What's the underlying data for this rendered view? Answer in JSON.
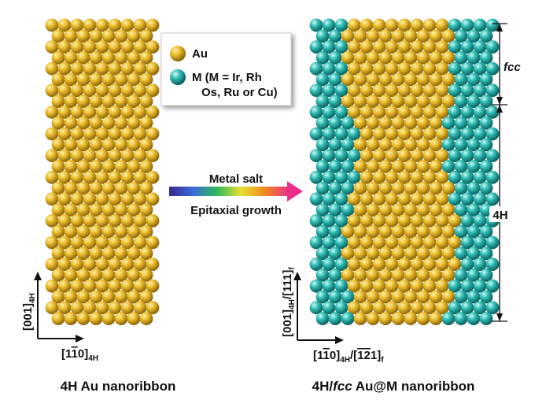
{
  "legend": {
    "items": [
      {
        "label_lines": [
          "Au"
        ]
      },
      {
        "label_lines": [
          "M (M = Ir, Rh",
          "Os, Ru or Cu)"
        ]
      }
    ]
  },
  "process": {
    "above": "Metal salt",
    "below": "Epitaxial growth"
  },
  "left_panel": {
    "caption": [
      {
        "text": "4H Au nanoribbon"
      }
    ],
    "y_axis": [
      {
        "text": "[001]"
      },
      {
        "text": "4H",
        "sub": true
      }
    ],
    "x_axis": [
      {
        "text": "[1"
      },
      {
        "text": "1",
        "bar": true
      },
      {
        "text": "0]"
      },
      {
        "text": "4H",
        "sub": true
      }
    ]
  },
  "right_panel": {
    "caption": [
      {
        "text": "4H/"
      },
      {
        "text": "fcc",
        "italic": true
      },
      {
        "text": " Au@M nanoribbon"
      }
    ],
    "y_axis": [
      {
        "text": "[001]"
      },
      {
        "text": "4H",
        "sub": true
      },
      {
        "text": "/[111]"
      },
      {
        "text": "f",
        "sub": true
      }
    ],
    "x_axis": [
      {
        "text": "[1"
      },
      {
        "text": "1",
        "bar": true
      },
      {
        "text": "0]"
      },
      {
        "text": "4H",
        "sub": true
      },
      {
        "text": "/["
      },
      {
        "text": "1",
        "bar": true
      },
      {
        "text": "2",
        "bar": true
      },
      {
        "text": "1]"
      },
      {
        "text": "f",
        "sub": true
      }
    ],
    "regions": [
      "fcc",
      "4H"
    ]
  }
}
